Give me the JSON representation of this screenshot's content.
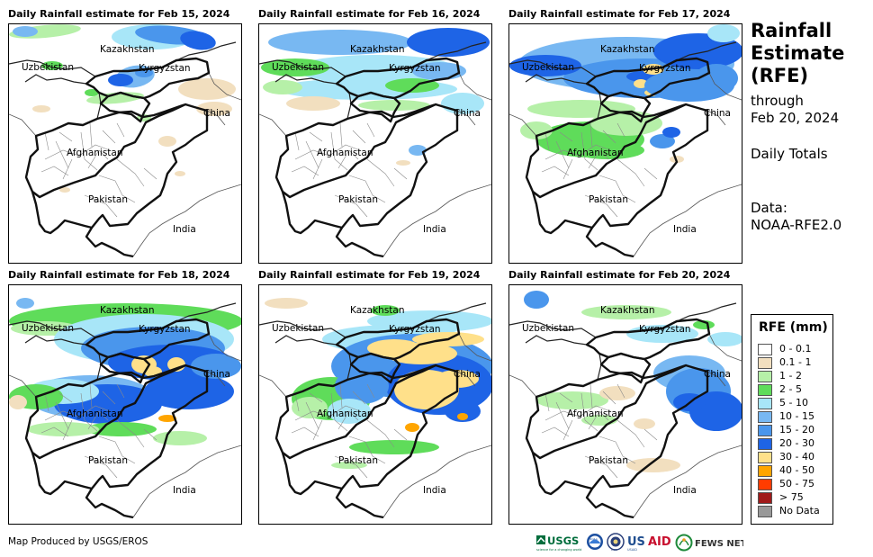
{
  "panels": [
    {
      "title": "Daily Rainfall estimate for Feb 15, 2024"
    },
    {
      "title": "Daily Rainfall estimate for Feb 16, 2024"
    },
    {
      "title": "Daily Rainfall estimate for Feb 17, 2024"
    },
    {
      "title": "Daily Rainfall estimate for Feb 18, 2024"
    },
    {
      "title": "Daily Rainfall estimate for Feb 19, 2024"
    },
    {
      "title": "Daily Rainfall estimate for Feb 20, 2024"
    }
  ],
  "map_labels": {
    "kazakhstan": "Kazakhstan",
    "uzbekistan": "Uzbekistan",
    "kyrgyzstan": "Kyrgyzstan",
    "china": "China",
    "afghanistan": "Afghanistan",
    "pakistan": "Pakistan",
    "india": "India"
  },
  "header": {
    "title_line1": "Rainfall",
    "title_line2": "Estimate",
    "title_line3": "(RFE)",
    "through": "through",
    "date": "Feb 20, 2024",
    "daily_totals": "Daily Totals",
    "data_label": "Data:",
    "data_source": "NOAA-RFE2.0"
  },
  "legend": {
    "title": "RFE (mm)",
    "items": [
      {
        "label": "0 - 0.1",
        "color": "#ffffff"
      },
      {
        "label": "0.1 - 1",
        "color": "#f2dfbf"
      },
      {
        "label": "1 - 2",
        "color": "#b6f0a8"
      },
      {
        "label": "2 - 5",
        "color": "#5fdc5a"
      },
      {
        "label": "5 - 10",
        "color": "#a8e6f8"
      },
      {
        "label": "10 - 15",
        "color": "#78b8f2"
      },
      {
        "label": "15 - 20",
        "color": "#4a96ec"
      },
      {
        "label": "20 - 30",
        "color": "#1e64e6"
      },
      {
        "label": "30 - 40",
        "color": "#ffe08a"
      },
      {
        "label": "40 - 50",
        "color": "#ffa500"
      },
      {
        "label": "50 - 75",
        "color": "#ff3c00"
      },
      {
        "label": "> 75",
        "color": "#a01a1a"
      },
      {
        "label": "No Data",
        "color": "#999999"
      }
    ]
  },
  "footer": {
    "credit": "Map Produced by USGS/EROS",
    "logos": [
      "USGS",
      "NOAA",
      "DOS",
      "USAID",
      "FEWS NET"
    ]
  }
}
